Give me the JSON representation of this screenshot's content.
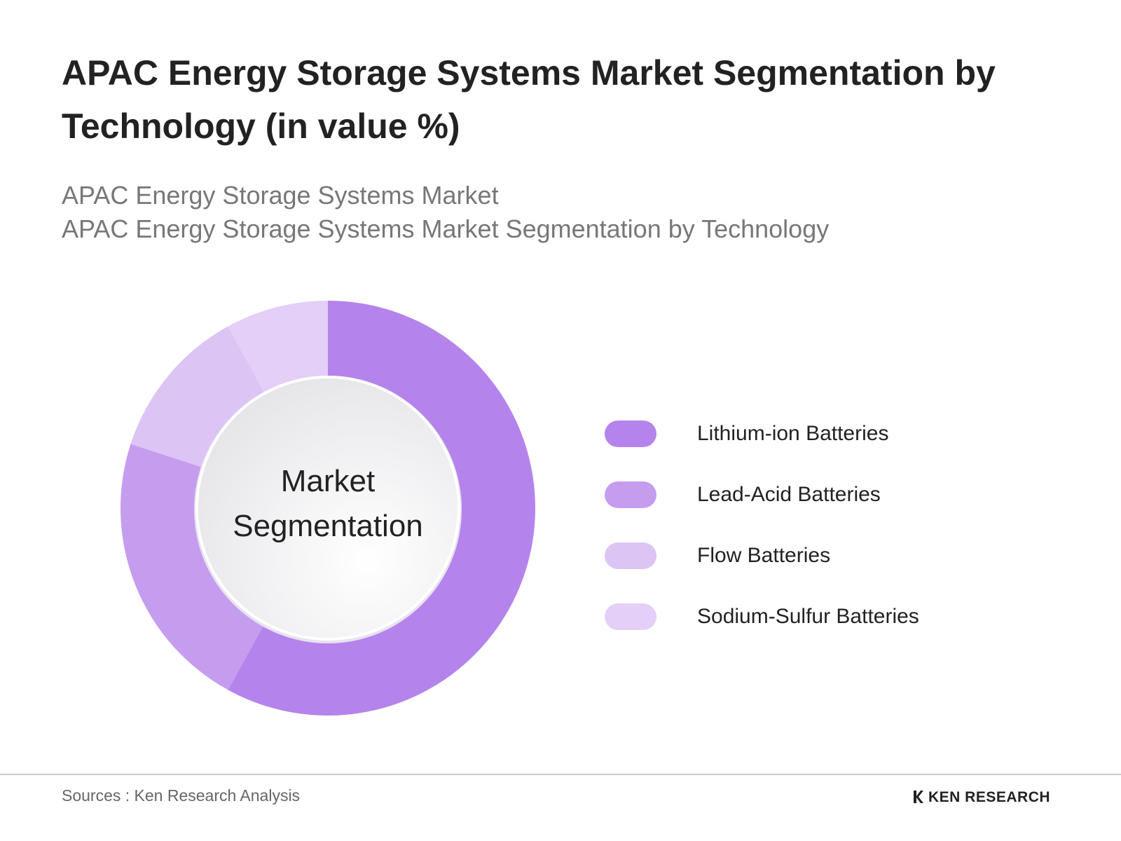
{
  "chart_data": {
    "type": "donut",
    "title": "APAC Energy Storage Systems Market Segmentation by Technology (in value %)",
    "subtitle": [
      "APAC Energy Storage Systems Market",
      "APAC Energy Storage Systems Market Segmentation by Technology"
    ],
    "center_label": "Market Segmentation",
    "categories": [
      "Lithium-ion Batteries",
      "Lead-Acid Batteries",
      "Flow Batteries",
      "Sodium-Sulfur Batteries"
    ],
    "values": [
      58,
      22,
      12,
      8
    ],
    "colors": [
      "#b484ec",
      "#c59def",
      "#dcc4f5",
      "#e3cff7"
    ],
    "legend": "right"
  },
  "footer": {
    "source": "Sources : Ken Research Analysis",
    "brand": "KEN RESEARCH"
  }
}
